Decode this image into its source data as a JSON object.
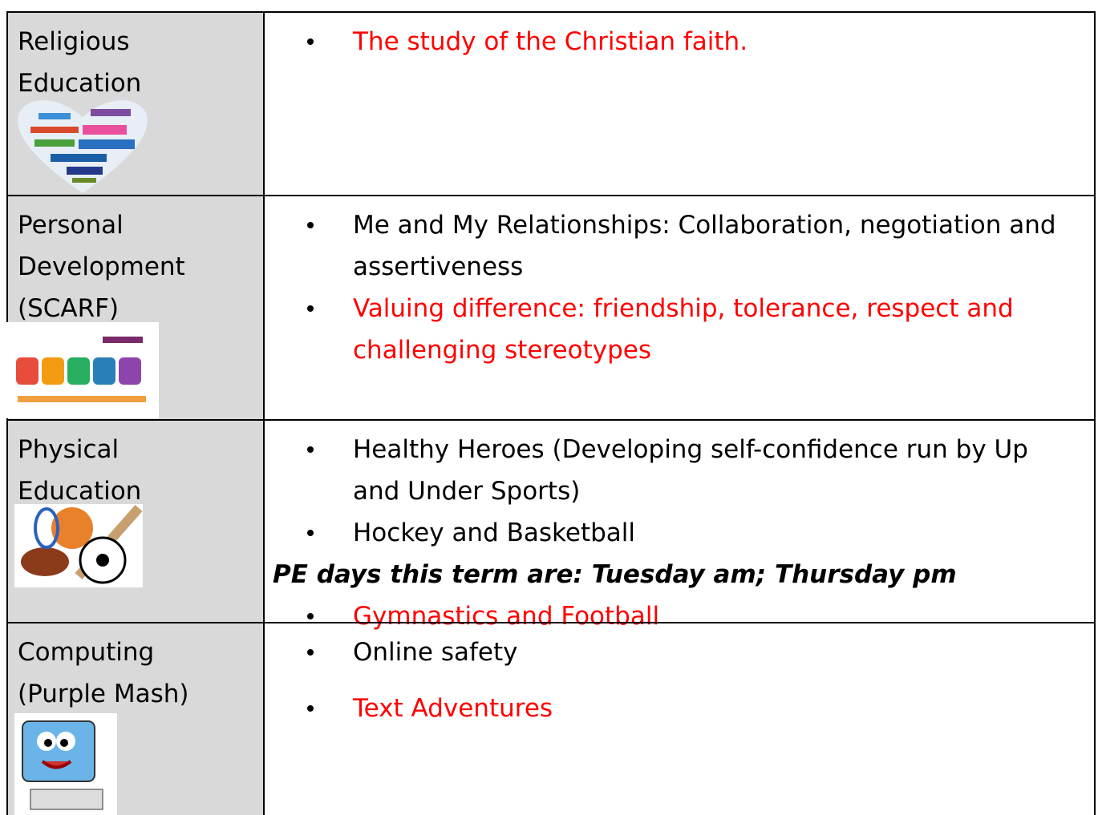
{
  "table": {
    "rows": [
      {
        "subject": [
          "Religious",
          "Education"
        ],
        "items": [
          {
            "text": "The study of the Christian faith.",
            "color": "#ff0000"
          }
        ]
      },
      {
        "subject": [
          "Personal",
          "Development",
          "(SCARF)"
        ],
        "items": [
          {
            "text": "Me and My Relationships: Collaboration, negotiation and assertiveness",
            "color": "#000000"
          },
          {
            "text": "Valuing difference: friendship, tolerance, respect and challenging stereotypes",
            "color": "#ff0000"
          }
        ]
      },
      {
        "subject": [
          "Physical",
          "Education"
        ],
        "items": [
          {
            "text": "Healthy Heroes (Developing self-confidence run by Up and Under Sports)",
            "color": "#000000"
          },
          {
            "text": "Hockey and Basketball",
            "color": "#000000"
          }
        ],
        "note": "PE days this term are: Tuesday am; Thursday pm",
        "items_after": [
          {
            "text": "Gymnastics and Football",
            "color": "#ff0000"
          }
        ]
      },
      {
        "subject": [
          "Computing",
          "(Purple Mash)"
        ],
        "items": [
          {
            "text": "Online safety",
            "color": "#000000"
          },
          {
            "text": "Text Adventures",
            "color": "#ff0000"
          }
        ]
      }
    ]
  }
}
